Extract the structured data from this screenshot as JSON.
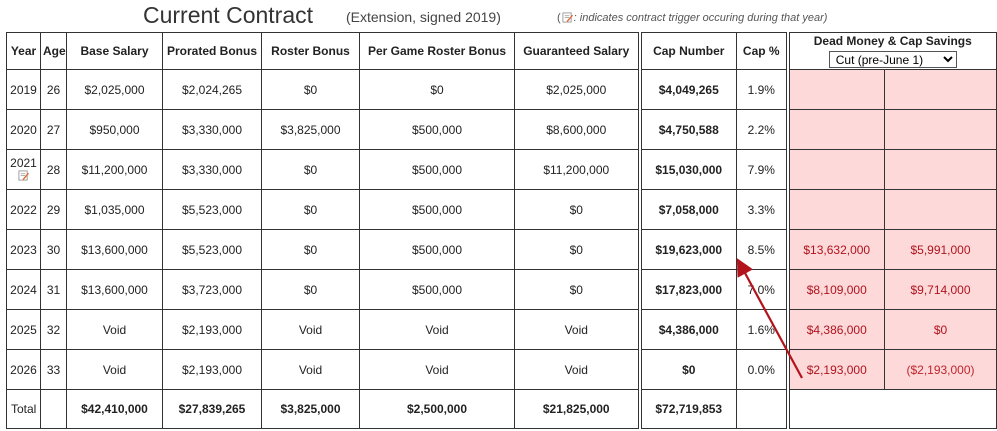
{
  "title": {
    "main": "Current Contract",
    "sub": "(Extension, signed 2019)",
    "note_open": "(",
    "note_text": ": indicates contract trigger occuring during that year)"
  },
  "headers": {
    "year": "Year",
    "age": "Age",
    "base": "Base Salary",
    "prorated": "Prorated Bonus",
    "roster": "Roster Bonus",
    "per_game": "Per Game Roster Bonus",
    "guaranteed": "Guaranteed Salary",
    "cap_number": "Cap Number",
    "cap_pct": "Cap %",
    "dead": "Dead Money & Cap Savings"
  },
  "cut_select": {
    "selected": "Cut (pre-June 1)"
  },
  "rows": [
    {
      "year": "2019",
      "age": "26",
      "base": "$2,025,000",
      "prorated": "$2,024,265",
      "roster": "$0",
      "per_game": "$0",
      "guaranteed": "$2,025,000",
      "cap_number": "$4,049,265",
      "cap_pct": "1.9%",
      "dead": "",
      "savings": ""
    },
    {
      "year": "2020",
      "age": "27",
      "base": "$950,000",
      "prorated": "$3,330,000",
      "roster": "$3,825,000",
      "per_game": "$500,000",
      "guaranteed": "$8,600,000",
      "cap_number": "$4,750,588",
      "cap_pct": "2.2%",
      "dead": "",
      "savings": ""
    },
    {
      "year": "2021",
      "age": "28",
      "base": "$11,200,000",
      "prorated": "$3,330,000",
      "roster": "$0",
      "per_game": "$500,000",
      "guaranteed": "$11,200,000",
      "cap_number": "$15,030,000",
      "cap_pct": "7.9%",
      "dead": "",
      "savings": ""
    },
    {
      "year": "2022",
      "age": "29",
      "base": "$1,035,000",
      "prorated": "$5,523,000",
      "roster": "$0",
      "per_game": "$500,000",
      "guaranteed": "$0",
      "cap_number": "$7,058,000",
      "cap_pct": "3.3%",
      "dead": "",
      "savings": ""
    },
    {
      "year": "2023",
      "age": "30",
      "base": "$13,600,000",
      "prorated": "$5,523,000",
      "roster": "$0",
      "per_game": "$500,000",
      "guaranteed": "$0",
      "cap_number": "$19,623,000",
      "cap_pct": "8.5%",
      "dead": "$13,632,000",
      "savings": "$5,991,000"
    },
    {
      "year": "2024",
      "age": "31",
      "base": "$13,600,000",
      "prorated": "$3,723,000",
      "roster": "$0",
      "per_game": "$500,000",
      "guaranteed": "$0",
      "cap_number": "$17,823,000",
      "cap_pct": "7.0%",
      "dead": "$8,109,000",
      "savings": "$9,714,000"
    },
    {
      "year": "2025",
      "age": "32",
      "base": "Void",
      "prorated": "$2,193,000",
      "roster": "Void",
      "per_game": "Void",
      "guaranteed": "Void",
      "cap_number": "$4,386,000",
      "cap_pct": "1.6%",
      "dead": "$4,386,000",
      "savings": "$0"
    },
    {
      "year": "2026",
      "age": "33",
      "base": "Void",
      "prorated": "$2,193,000",
      "roster": "Void",
      "per_game": "Void",
      "guaranteed": "Void",
      "cap_number": "$0",
      "cap_pct": "0.0%",
      "dead": "$2,193,000",
      "savings": "($2,193,000)"
    }
  ],
  "total": {
    "label": "Total",
    "base": "$42,410,000",
    "prorated": "$27,839,265",
    "roster": "$3,825,000",
    "per_game": "$2,500,000",
    "guaranteed": "$21,825,000",
    "cap_number": "$72,719,853"
  },
  "trigger_icon": "contract-trigger-icon",
  "colors": {
    "dead_bg": "#fdd9d9",
    "dead_text": "#b0131e",
    "arrow": "#b3131b"
  }
}
